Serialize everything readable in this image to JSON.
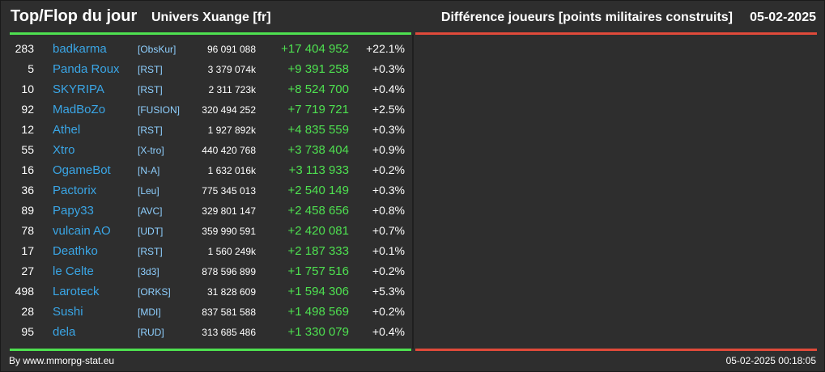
{
  "header": {
    "title": "Top/Flop du jour",
    "universe": "Univers Xuange [fr]",
    "metric": "Différence joueurs [points militaires construits]",
    "date": "05-02-2025"
  },
  "colors": {
    "background": "#2e2e2e",
    "top_line": "#4ee050",
    "flop_line": "#e04a3a",
    "player_name": "#3aa6e6",
    "alliance": "#8fd0ff",
    "delta_positive": "#4ee050"
  },
  "rows": [
    {
      "rank": "283",
      "name": "badkarma",
      "alliance": "[ObsKur]",
      "points": "96 091 088",
      "delta": "+17 404 952",
      "pct": "+22.1%"
    },
    {
      "rank": "5",
      "name": "Panda Roux",
      "alliance": "[RST]",
      "points": "3 379 074k",
      "delta": "+9 391 258",
      "pct": "+0.3%"
    },
    {
      "rank": "10",
      "name": "SKYRIPA",
      "alliance": "[RST]",
      "points": "2 311 723k",
      "delta": "+8 524 700",
      "pct": "+0.4%"
    },
    {
      "rank": "92",
      "name": "MadBoZo",
      "alliance": "[FUSION]",
      "points": "320 494 252",
      "delta": "+7 719 721",
      "pct": "+2.5%"
    },
    {
      "rank": "12",
      "name": "Athel",
      "alliance": "[RST]",
      "points": "1 927 892k",
      "delta": "+4 835 559",
      "pct": "+0.3%"
    },
    {
      "rank": "55",
      "name": "Xtro",
      "alliance": "[X-tro]",
      "points": "440 420 768",
      "delta": "+3 738 404",
      "pct": "+0.9%"
    },
    {
      "rank": "16",
      "name": "OgameBot",
      "alliance": "[N-A]",
      "points": "1 632 016k",
      "delta": "+3 113 933",
      "pct": "+0.2%"
    },
    {
      "rank": "36",
      "name": "Pactorix",
      "alliance": "[Leu]",
      "points": "775 345 013",
      "delta": "+2 540 149",
      "pct": "+0.3%"
    },
    {
      "rank": "89",
      "name": "Papy33",
      "alliance": "[AVC]",
      "points": "329 801 147",
      "delta": "+2 458 656",
      "pct": "+0.8%"
    },
    {
      "rank": "78",
      "name": "vulcain AO",
      "alliance": "[UDT]",
      "points": "359 990 591",
      "delta": "+2 420 081",
      "pct": "+0.7%"
    },
    {
      "rank": "17",
      "name": "Deathko",
      "alliance": "[RST]",
      "points": "1 560 249k",
      "delta": "+2 187 333",
      "pct": "+0.1%"
    },
    {
      "rank": "27",
      "name": "le Celte",
      "alliance": "[3d3]",
      "points": "878 596 899",
      "delta": "+1 757 516",
      "pct": "+0.2%"
    },
    {
      "rank": "498",
      "name": "Laroteck",
      "alliance": "[ORKS]",
      "points": "31 828 609",
      "delta": "+1 594 306",
      "pct": "+5.3%"
    },
    {
      "rank": "28",
      "name": "Sushi",
      "alliance": "[MDI]",
      "points": "837 581 588",
      "delta": "+1 498 569",
      "pct": "+0.2%"
    },
    {
      "rank": "95",
      "name": "dela",
      "alliance": "[RUD]",
      "points": "313 685 486",
      "delta": "+1 330 079",
      "pct": "+0.4%"
    }
  ],
  "footer": {
    "credit": "By www.mmorpg-stat.eu",
    "timestamp": "05-02-2025 00:18:05"
  }
}
